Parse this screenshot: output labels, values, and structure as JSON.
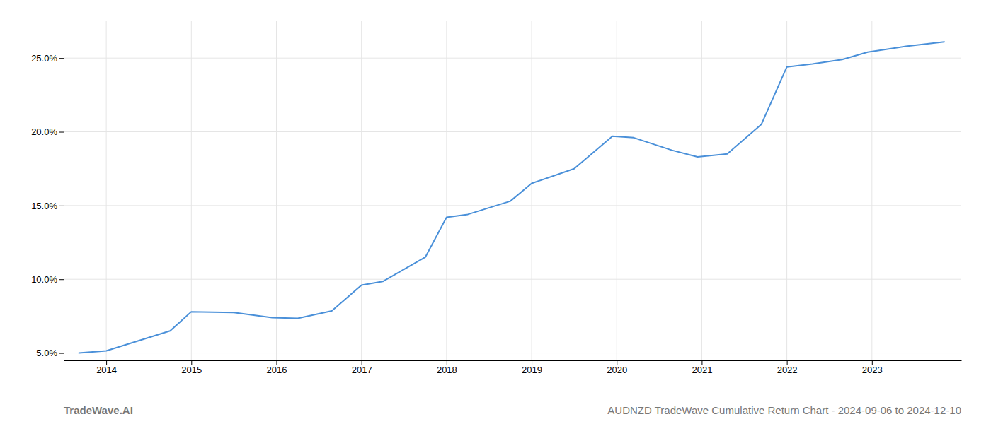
{
  "chart_data": {
    "type": "line",
    "x": [
      2013.68,
      2014.0,
      2014.75,
      2015.0,
      2015.5,
      2015.95,
      2016.25,
      2016.65,
      2017.0,
      2017.25,
      2017.75,
      2018.0,
      2018.25,
      2018.75,
      2019.0,
      2019.5,
      2019.95,
      2020.2,
      2020.65,
      2020.95,
      2021.3,
      2021.7,
      2022.0,
      2022.3,
      2022.65,
      2022.95,
      2023.4,
      2023.85
    ],
    "values": [
      5.0,
      5.15,
      6.5,
      7.8,
      7.75,
      7.4,
      7.35,
      7.85,
      9.6,
      9.85,
      11.5,
      14.2,
      14.4,
      15.3,
      16.5,
      17.5,
      19.7,
      19.6,
      18.75,
      18.3,
      18.5,
      20.5,
      24.4,
      24.6,
      24.9,
      25.4,
      25.8,
      26.1
    ],
    "color": "#4a90d9",
    "xlim": [
      2013.5,
      2024.05
    ],
    "ylim": [
      4.5,
      27.5
    ],
    "xticks": [
      2014,
      2015,
      2016,
      2017,
      2018,
      2019,
      2020,
      2021,
      2022,
      2023
    ],
    "yticks": [
      {
        "value": 5.0,
        "label": "5.0%"
      },
      {
        "value": 10.0,
        "label": "10.0%"
      },
      {
        "value": 15.0,
        "label": "15.0%"
      },
      {
        "value": 20.0,
        "label": "20.0%"
      },
      {
        "value": 25.0,
        "label": "25.0%"
      }
    ],
    "grid": true,
    "annotations": [
      "TradeWave.AI",
      "AUDNZD TradeWave Cumulative Return Chart - 2024-09-06 to 2024-12-10"
    ]
  }
}
